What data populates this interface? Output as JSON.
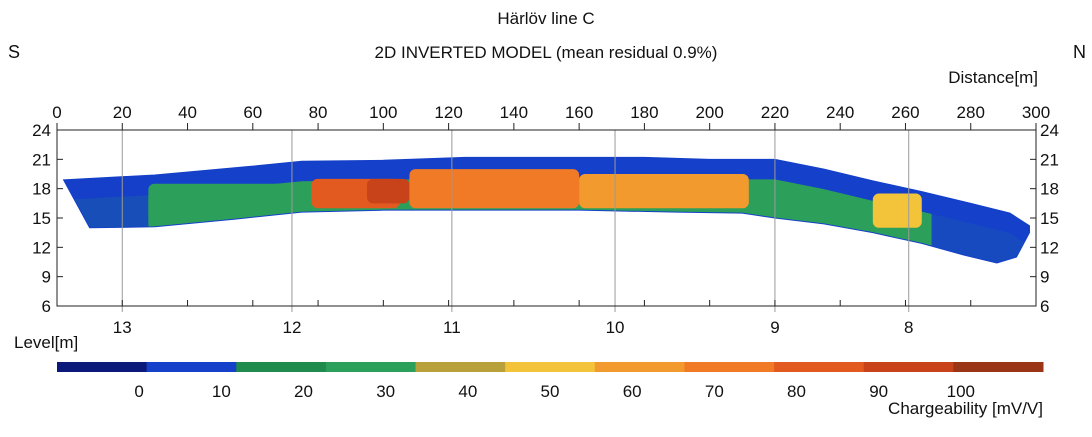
{
  "header": {
    "title": "Härlöv line C",
    "subtitle": "2D INVERTED MODEL (mean residual 0.9%)",
    "left_dir": "S",
    "right_dir": "N"
  },
  "chart_data": {
    "type": "heatmap",
    "title": "Härlöv line C",
    "subtitle": "2D INVERTED MODEL (mean residual 0.9%)",
    "xlabel": "Distance[m]",
    "ylabel": "Level[m]",
    "xlim": [
      0,
      300
    ],
    "ylim": [
      6,
      24
    ],
    "x_ticks": [
      0,
      20,
      40,
      60,
      80,
      100,
      120,
      140,
      160,
      180,
      200,
      220,
      240,
      260,
      280,
      300
    ],
    "y_ticks": [
      6,
      9,
      12,
      15,
      18,
      21,
      24
    ],
    "electrode_markers": [
      {
        "x": 20,
        "label": "13"
      },
      {
        "x": 72,
        "label": "12"
      },
      {
        "x": 121,
        "label": "11"
      },
      {
        "x": 171,
        "label": "10"
      },
      {
        "x": 220,
        "label": "9"
      },
      {
        "x": 261,
        "label": "8"
      }
    ],
    "section_top": [
      [
        2,
        18.9
      ],
      [
        30,
        19.4
      ],
      [
        60,
        20.3
      ],
      [
        75,
        20.8
      ],
      [
        100,
        20.9
      ],
      [
        125,
        21.2
      ],
      [
        150,
        21.2
      ],
      [
        180,
        21.2
      ],
      [
        200,
        21.0
      ],
      [
        220,
        21.0
      ],
      [
        235,
        20.0
      ],
      [
        250,
        18.8
      ],
      [
        265,
        17.7
      ],
      [
        280,
        16.5
      ],
      [
        292,
        15.5
      ],
      [
        298,
        14.2
      ]
    ],
    "section_bottom": [
      [
        10,
        14.0
      ],
      [
        30,
        14.1
      ],
      [
        55,
        14.9
      ],
      [
        75,
        15.6
      ],
      [
        100,
        15.8
      ],
      [
        130,
        15.8
      ],
      [
        160,
        15.8
      ],
      [
        190,
        15.6
      ],
      [
        210,
        15.5
      ],
      [
        220,
        15.0
      ],
      [
        235,
        14.4
      ],
      [
        250,
        13.5
      ],
      [
        265,
        12.4
      ],
      [
        278,
        11.2
      ],
      [
        288,
        10.4
      ],
      [
        294,
        11.0
      ],
      [
        298,
        13.5
      ]
    ],
    "anomalies": [
      {
        "x": [
          78,
          105
        ],
        "level": [
          16.0,
          19.0
        ],
        "value": 80
      },
      {
        "x": [
          95,
          108
        ],
        "level": [
          16.5,
          19.0
        ],
        "value": 95
      },
      {
        "x": [
          108,
          160
        ],
        "level": [
          16.0,
          20.0
        ],
        "value": 75
      },
      {
        "x": [
          160,
          212
        ],
        "level": [
          16.0,
          19.5
        ],
        "value": 60
      },
      {
        "x": [
          28,
          75
        ],
        "level": [
          14.5,
          18.5
        ],
        "value": 30
      },
      {
        "x": [
          250,
          265
        ],
        "level": [
          14.0,
          17.5
        ],
        "value": 55
      }
    ],
    "colorbar": {
      "label": "Chargeability [mV/V]",
      "ticks": [
        0,
        10,
        20,
        30,
        40,
        50,
        60,
        70,
        80,
        90,
        100
      ],
      "colors": [
        "#0b1a7a",
        "#1540c9",
        "#1f8b4c",
        "#2ca05a",
        "#b8a13a",
        "#f3c43a",
        "#f29a2e",
        "#f07a26",
        "#e25a20",
        "#c8421a",
        "#9a3516"
      ],
      "range": [
        -10,
        110
      ]
    }
  }
}
